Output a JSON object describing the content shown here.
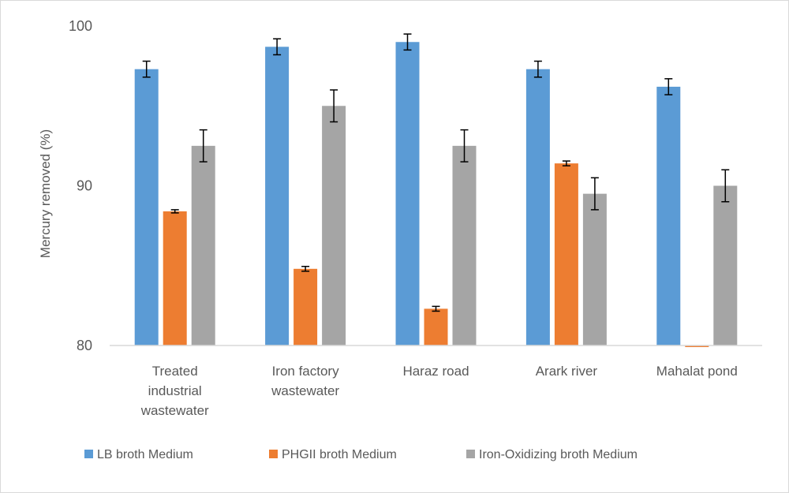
{
  "chart_data": {
    "type": "bar",
    "title": "",
    "xlabel": "",
    "ylabel": "Mercury removed (%)",
    "ylim": [
      80,
      100
    ],
    "yticks": [
      80,
      90,
      100
    ],
    "grid": false,
    "legend_position": "bottom",
    "categories": [
      [
        "Treated",
        "industrial",
        "wastewater"
      ],
      [
        "Iron factory",
        "wastewater"
      ],
      [
        "Haraz road"
      ],
      [
        "Arark river"
      ],
      [
        "Mahalat pond"
      ]
    ],
    "series": [
      {
        "name": "LB broth Medium",
        "color": "#5b9bd5",
        "values": [
          97.3,
          98.7,
          99.0,
          97.3,
          96.2
        ],
        "errors": [
          0.5,
          0.5,
          0.5,
          0.5,
          0.5
        ]
      },
      {
        "name": "PHGII broth Medium",
        "color": "#ed7d31",
        "values": [
          88.4,
          84.8,
          82.3,
          91.4,
          79.9
        ],
        "errors": [
          0.1,
          0.15,
          0.15,
          0.15,
          0.0
        ]
      },
      {
        "name": "Iron-Oxidizing broth Medium",
        "color": "#a5a5a5",
        "values": [
          92.5,
          95.0,
          92.5,
          89.5,
          90.0
        ],
        "errors": [
          1.0,
          1.0,
          1.0,
          1.0,
          1.0
        ]
      }
    ]
  }
}
